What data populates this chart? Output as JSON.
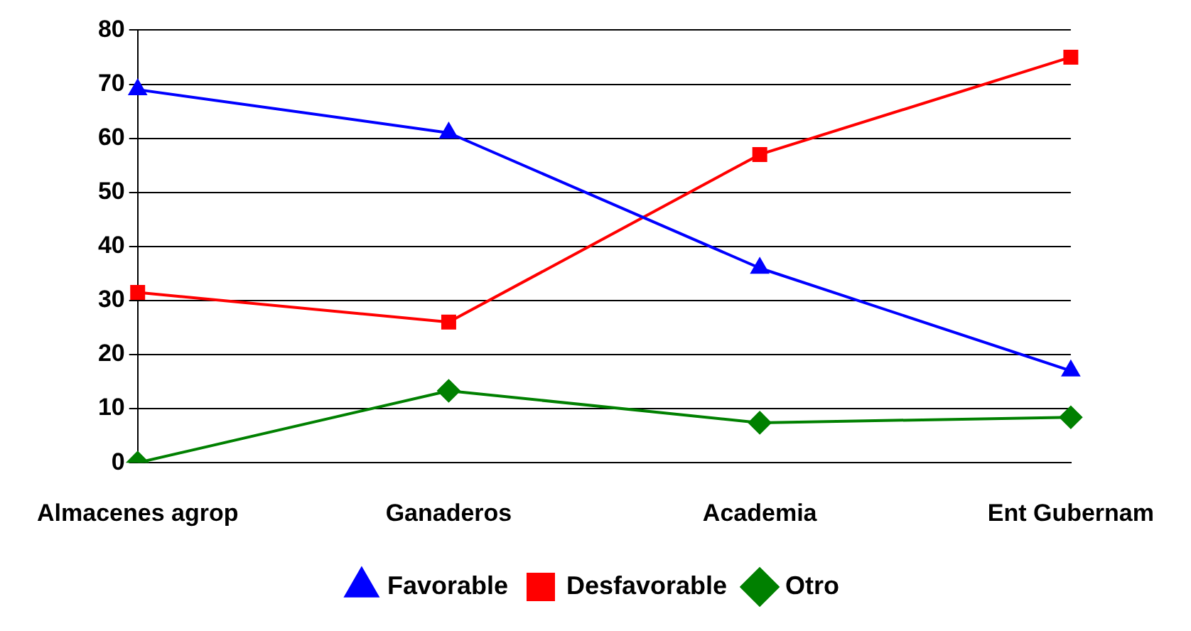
{
  "chart_data": {
    "type": "line",
    "categories": [
      "Almacenes agrop",
      "Ganaderos",
      "Academia",
      "Ent Gubernam"
    ],
    "series": [
      {
        "name": "Favorable",
        "color": "#0000ff",
        "marker": "triangle",
        "values": [
          69,
          61,
          36,
          17
        ]
      },
      {
        "name": "Desfavorable",
        "color": "#ff0000",
        "marker": "square",
        "values": [
          31.5,
          26,
          57,
          75
        ]
      },
      {
        "name": "Otro",
        "color": "#008000",
        "marker": "diamond",
        "values": [
          0,
          13.3,
          7.4,
          8.4
        ]
      }
    ],
    "ylim": [
      0,
      80
    ],
    "yticks": [
      0,
      10,
      20,
      30,
      40,
      50,
      60,
      70,
      80
    ],
    "grid": "y",
    "legend": "bottom"
  }
}
